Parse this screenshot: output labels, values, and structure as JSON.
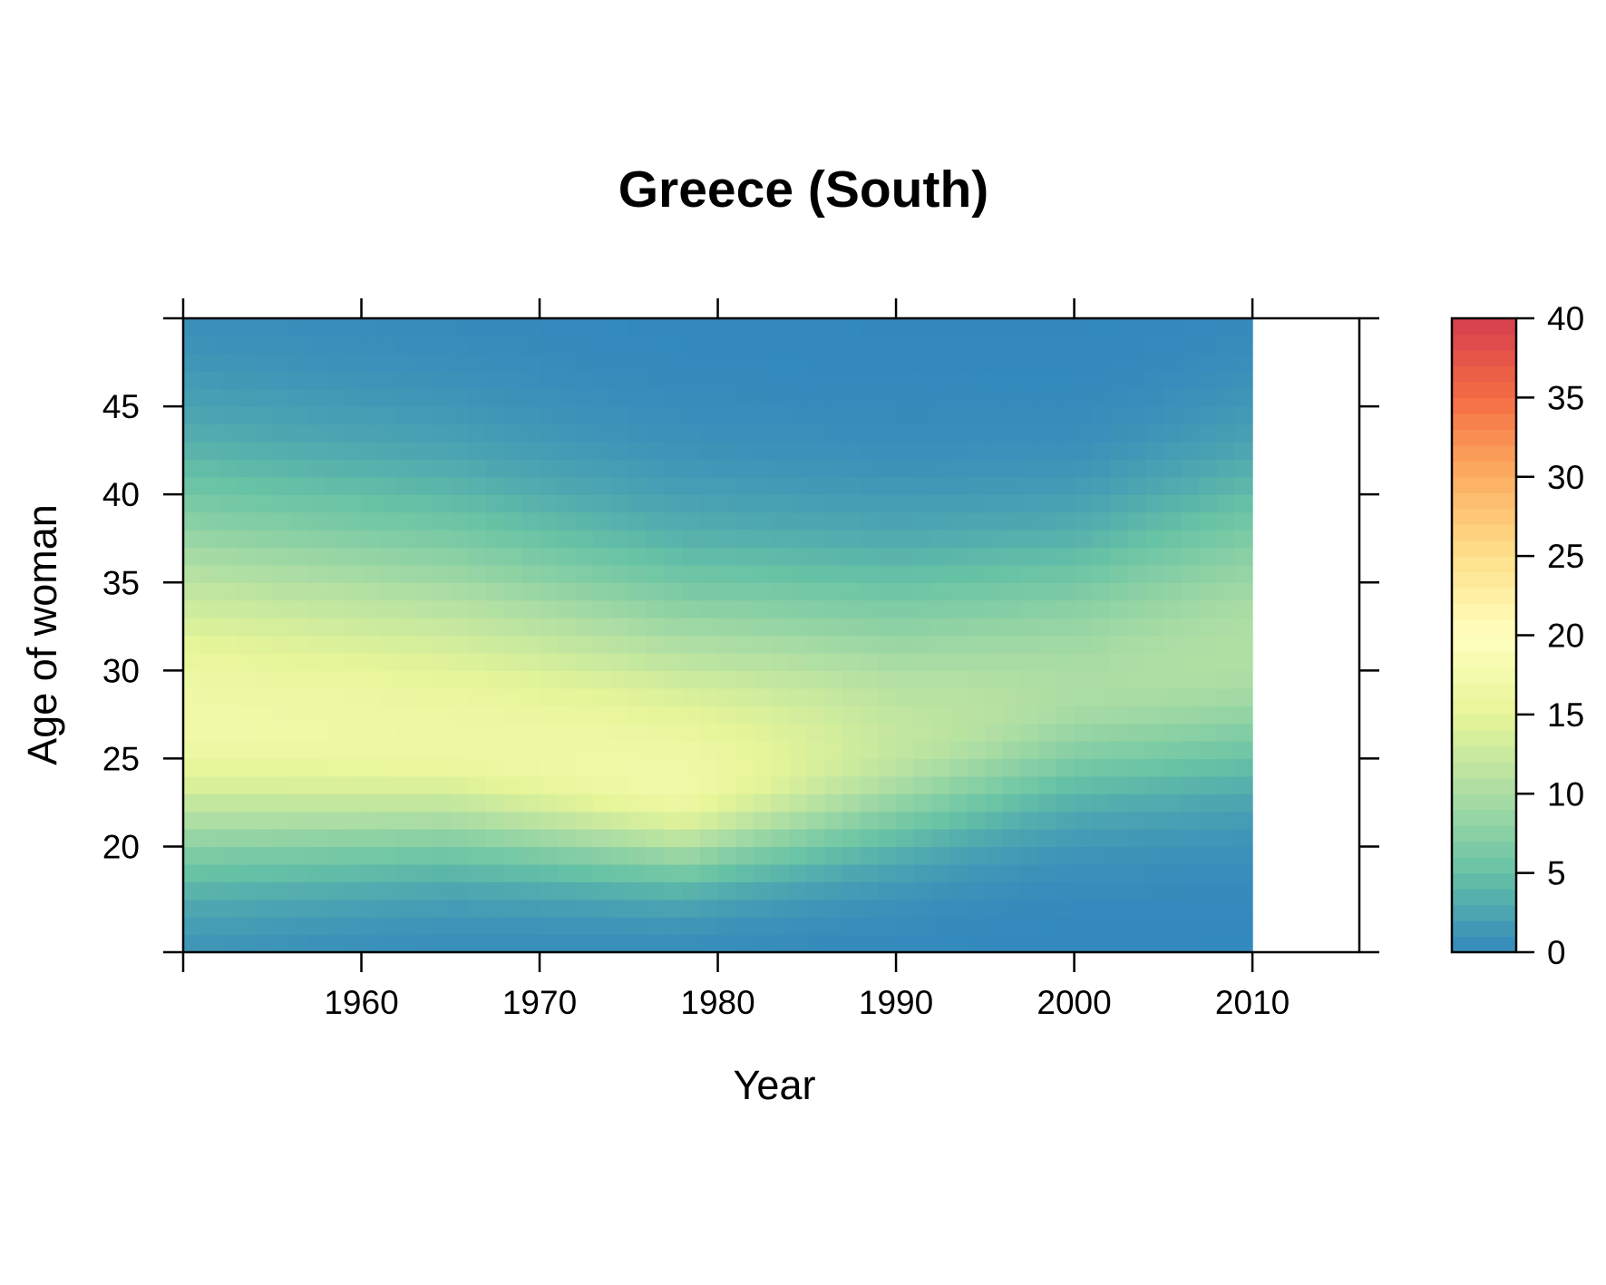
{
  "chart_data": {
    "type": "heatmap",
    "title": "Greece (South)",
    "xlabel": "Year",
    "ylabel": "Age of woman",
    "xlim": [
      1950,
      2016
    ],
    "ylim": [
      14,
      50
    ],
    "x_range_data": [
      1950,
      2010
    ],
    "y_range_data": [
      14,
      50
    ],
    "x_ticks": [
      1960,
      1970,
      1980,
      1990,
      2000,
      2010
    ],
    "x_tick_labels": [
      "1960",
      "1970",
      "1980",
      "1990",
      "2000",
      "2010"
    ],
    "y_ticks": [
      20,
      25,
      30,
      35,
      40,
      45
    ],
    "y_tick_labels": [
      "20",
      "25",
      "30",
      "35",
      "40",
      "45"
    ],
    "colorbar": {
      "min": 0,
      "max": 40,
      "ticks": [
        0,
        5,
        10,
        15,
        20,
        25,
        30,
        35,
        40
      ],
      "tick_labels": [
        "0",
        "5",
        "10",
        "15",
        "20",
        "25",
        "30",
        "35",
        "40"
      ],
      "color_stops": [
        "#3288bd",
        "#66c2a5",
        "#abdda4",
        "#e6f598",
        "#ffffbf",
        "#fee08b",
        "#fdae61",
        "#f46d43",
        "#d53e4f"
      ]
    },
    "value_model": {
      "description_of_estimated_surface": "fertility rate per 100 women by age and year",
      "peak_age_keyframes": [
        [
          1950,
          27
        ],
        [
          1965,
          26
        ],
        [
          1978,
          23.5
        ],
        [
          1990,
          26
        ],
        [
          2000,
          29
        ],
        [
          2010,
          31
        ]
      ],
      "peak_value_keyframes": [
        [
          1950,
          17
        ],
        [
          1965,
          16.5
        ],
        [
          1978,
          17
        ],
        [
          1990,
          12
        ],
        [
          2000,
          10
        ],
        [
          2010,
          10.5
        ]
      ],
      "spread_lower_keyframes": [
        [
          1950,
          5.5
        ],
        [
          1978,
          3.5
        ],
        [
          2000,
          4.5
        ],
        [
          2010,
          5
        ]
      ],
      "spread_upper_keyframes": [
        [
          1950,
          9
        ],
        [
          1978,
          8
        ],
        [
          2000,
          6
        ],
        [
          2010,
          7
        ]
      ]
    }
  }
}
